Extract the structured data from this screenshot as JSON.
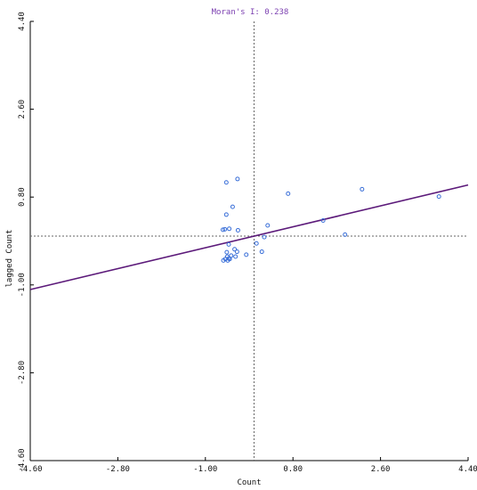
{
  "chart_data": {
    "type": "scatter",
    "title": "Moran's I: 0.238",
    "xlabel": "Count",
    "ylabel": "lagged Count",
    "xlim": [
      -4.6,
      4.4
    ],
    "ylim": [
      -4.6,
      4.4
    ],
    "x_ticks": [
      -4.6,
      -2.8,
      -1.0,
      0.8,
      2.6,
      4.4
    ],
    "x_tick_labels": [
      "-4.60",
      "-2.80",
      "-1.00",
      "0.80",
      "2.60",
      "4.40"
    ],
    "y_ticks": [
      -4.6,
      -2.8,
      -1.0,
      0.8,
      2.6,
      4.4
    ],
    "y_tick_labels": [
      "-4.60",
      "-2.80",
      "-1.00",
      "0.80",
      "2.60",
      "4.40"
    ],
    "regression": {
      "slope": 0.238,
      "intercept": 0.0
    },
    "mean_x": 0.0,
    "mean_y": 0.0,
    "grid": false,
    "points": [
      {
        "x": -0.57,
        "y": 1.1
      },
      {
        "x": -0.34,
        "y": 1.17
      },
      {
        "x": 0.7,
        "y": 0.87
      },
      {
        "x": 2.22,
        "y": 0.96
      },
      {
        "x": 3.8,
        "y": 0.81
      },
      {
        "x": -0.44,
        "y": 0.6
      },
      {
        "x": -0.57,
        "y": 0.44
      },
      {
        "x": -0.6,
        "y": 0.14
      },
      {
        "x": -0.64,
        "y": 0.13
      },
      {
        "x": -0.51,
        "y": 0.15
      },
      {
        "x": -0.33,
        "y": 0.12
      },
      {
        "x": 0.28,
        "y": 0.22
      },
      {
        "x": 1.42,
        "y": 0.32
      },
      {
        "x": 1.87,
        "y": 0.03
      },
      {
        "x": 0.21,
        "y": -0.02
      },
      {
        "x": 0.05,
        "y": -0.15
      },
      {
        "x": -0.52,
        "y": -0.17
      },
      {
        "x": -0.4,
        "y": -0.27
      },
      {
        "x": -0.35,
        "y": -0.32
      },
      {
        "x": 0.16,
        "y": -0.32
      },
      {
        "x": -0.56,
        "y": -0.33
      },
      {
        "x": -0.16,
        "y": -0.38
      },
      {
        "x": -0.47,
        "y": -0.4
      },
      {
        "x": -0.55,
        "y": -0.42
      },
      {
        "x": -0.38,
        "y": -0.42
      },
      {
        "x": -0.52,
        "y": -0.46
      },
      {
        "x": -0.59,
        "y": -0.47
      },
      {
        "x": -0.63,
        "y": -0.5
      },
      {
        "x": -0.54,
        "y": -0.5
      },
      {
        "x": -0.5,
        "y": -0.47
      }
    ],
    "colors": {
      "title": "#7b3fb0",
      "points": "#3a6fd8",
      "regression": "#5c1a7a",
      "mean_lines": "#666666",
      "axes": "#000000"
    }
  }
}
